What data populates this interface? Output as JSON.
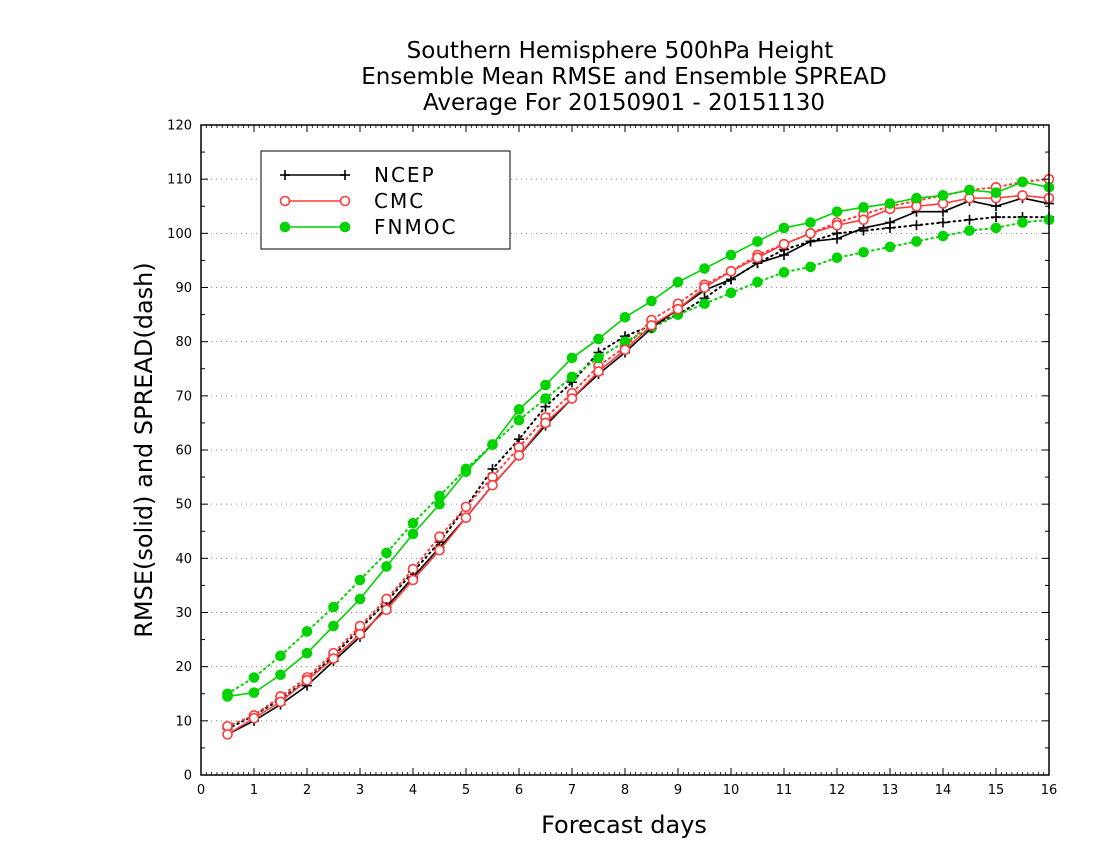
{
  "chart_data": {
    "type": "line",
    "title": [
      "Southern Hemisphere 500hPa Height",
      "Ensemble Mean RMSE and Ensemble SPREAD",
      "Average For 20150901 - 20151130"
    ],
    "xlabel": "Forecast days",
    "ylabel": "RMSE(solid) and SPREAD(dash)",
    "xlim": [
      0,
      16
    ],
    "ylim": [
      0,
      120
    ],
    "xticks": [
      0,
      1,
      2,
      3,
      4,
      5,
      6,
      7,
      8,
      9,
      10,
      11,
      12,
      13,
      14,
      15,
      16
    ],
    "yticks": [
      0,
      10,
      20,
      30,
      40,
      50,
      60,
      70,
      80,
      90,
      100,
      110,
      120
    ],
    "grid": "horizontal-dotted",
    "legend_position": "top-left",
    "x": [
      0.5,
      1,
      1.5,
      2,
      2.5,
      3,
      3.5,
      4,
      4.5,
      5,
      5.5,
      6,
      6.5,
      7,
      7.5,
      8,
      8.5,
      9,
      9.5,
      10,
      10.5,
      11,
      11.5,
      12,
      12.5,
      13,
      13.5,
      14,
      14.5,
      15,
      15.5,
      16
    ],
    "series": [
      {
        "name": "NCEP",
        "kind": "rmse",
        "color": "#000000",
        "marker": "plus",
        "values": [
          7.5,
          10,
          13,
          16.5,
          21,
          25.5,
          31,
          36.5,
          42,
          47.5,
          53.5,
          59,
          64.5,
          69.5,
          74,
          78,
          82.5,
          86,
          89.5,
          91.5,
          94.5,
          96,
          98.5,
          99,
          101,
          102,
          104,
          104,
          106,
          105,
          106.5,
          105.5
        ]
      },
      {
        "name": "CMC",
        "kind": "rmse",
        "color": "#ff3b3b",
        "marker": "open-circle",
        "values": [
          7.5,
          10.5,
          13.5,
          17.5,
          21.5,
          26,
          30.5,
          36,
          41.5,
          47.5,
          53.5,
          59,
          65,
          69.5,
          74.5,
          78.5,
          83,
          86,
          90,
          93,
          95.5,
          98,
          100,
          101.5,
          102.5,
          104.5,
          105,
          105.5,
          106.5,
          106.5,
          107,
          106.5
        ]
      },
      {
        "name": "FNMOC",
        "kind": "rmse",
        "color": "#00d300",
        "marker": "filled-circle",
        "values": [
          14.5,
          15.2,
          18.5,
          22.5,
          27.5,
          32.5,
          38.5,
          44.5,
          50,
          56,
          61,
          67.5,
          72,
          77,
          80.5,
          84.5,
          87.5,
          91,
          93.5,
          96,
          98.5,
          101,
          102,
          104,
          104.8,
          105.5,
          106.5,
          107,
          108,
          107.5,
          109.5,
          108.5
        ]
      },
      {
        "name": "NCEP",
        "kind": "spread",
        "color": "#000000",
        "marker": "plus",
        "values": [
          8.5,
          11,
          14,
          17.5,
          22,
          27,
          32,
          37.5,
          43,
          49.5,
          56.5,
          62,
          68,
          72.5,
          78,
          81,
          83,
          85,
          88,
          91.5,
          94.5,
          97,
          98.5,
          100,
          100.5,
          101,
          101.5,
          102,
          102.5,
          103,
          103,
          103
        ]
      },
      {
        "name": "CMC",
        "kind": "spread",
        "color": "#ff3b3b",
        "marker": "open-circle",
        "values": [
          9,
          11,
          14.5,
          18,
          22.5,
          27.5,
          32.5,
          38,
          44,
          49.5,
          55,
          60.5,
          66,
          70.5,
          75.5,
          79,
          84,
          87,
          90.5,
          93,
          96,
          98,
          100,
          102,
          103.5,
          105,
          106,
          107,
          108,
          108.5,
          109.5,
          110
        ]
      },
      {
        "name": "FNMOC",
        "kind": "spread",
        "color": "#00d300",
        "marker": "filled-circle",
        "values": [
          15,
          18,
          22,
          26.5,
          31,
          36,
          41,
          46.5,
          51.5,
          56.5,
          61,
          65.5,
          69.5,
          73.5,
          77,
          80,
          82.5,
          85,
          87,
          89,
          91,
          92.8,
          93.8,
          95.5,
          96.5,
          97.5,
          98.5,
          99.5,
          100.5,
          101,
          102,
          102.5
        ]
      }
    ],
    "legend": [
      {
        "label": "NCEP",
        "color": "#000000",
        "marker": "plus"
      },
      {
        "label": "CMC",
        "color": "#ff3b3b",
        "marker": "open-circle"
      },
      {
        "label": "FNMOC",
        "color": "#00d300",
        "marker": "filled-circle"
      }
    ]
  }
}
